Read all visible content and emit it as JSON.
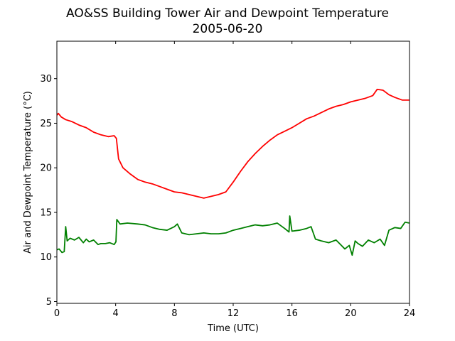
{
  "chart_data": {
    "type": "line",
    "title": "AO&SS Building Tower Air and Dewpoint Temperature",
    "subtitle": "2005-06-20",
    "xlabel": "Time (UTC)",
    "ylabel": "Air and Dewpoint Temperature (°C)",
    "xlim": [
      0,
      24
    ],
    "ylim": [
      4.8,
      34.2
    ],
    "xticks": [
      0,
      4,
      8,
      12,
      16,
      20,
      24
    ],
    "yticks": [
      5,
      10,
      15,
      20,
      25,
      30
    ],
    "grid": false,
    "legend": "none",
    "series": [
      {
        "color": "#ff0000",
        "x": [
          0,
          0.1,
          0.3,
          0.6,
          1.0,
          1.5,
          2.0,
          2.5,
          3.0,
          3.5,
          3.9,
          4.05,
          4.2,
          4.5,
          5.0,
          5.5,
          6.0,
          6.5,
          7.0,
          7.5,
          8.0,
          8.5,
          9.0,
          9.5,
          10.0,
          10.5,
          11.0,
          11.5,
          12.0,
          12.5,
          13.0,
          13.5,
          14.0,
          14.5,
          15.0,
          15.5,
          16.0,
          16.5,
          17.0,
          17.5,
          18.0,
          18.5,
          19.0,
          19.5,
          20.0,
          20.5,
          21.0,
          21.5,
          21.8,
          22.2,
          22.6,
          23.0,
          23.5,
          24.0
        ],
        "y": [
          25.9,
          26.1,
          25.7,
          25.4,
          25.2,
          24.8,
          24.5,
          24.0,
          23.7,
          23.5,
          23.6,
          23.3,
          21.0,
          20.0,
          19.3,
          18.7,
          18.4,
          18.2,
          17.9,
          17.6,
          17.3,
          17.2,
          17.0,
          16.8,
          16.6,
          16.8,
          17.0,
          17.3,
          18.4,
          19.6,
          20.7,
          21.6,
          22.4,
          23.1,
          23.7,
          24.1,
          24.5,
          25.0,
          25.5,
          25.8,
          26.2,
          26.6,
          26.9,
          27.1,
          27.4,
          27.6,
          27.8,
          28.1,
          28.8,
          28.7,
          28.2,
          27.9,
          27.6,
          27.6
        ]
      },
      {
        "color": "#008000",
        "x": [
          0,
          0.15,
          0.35,
          0.5,
          0.6,
          0.7,
          0.9,
          1.2,
          1.5,
          1.8,
          2.0,
          2.2,
          2.5,
          2.8,
          3.0,
          3.3,
          3.6,
          3.9,
          4.02,
          4.08,
          4.3,
          4.8,
          5.5,
          6.0,
          6.5,
          7.0,
          7.5,
          8.0,
          8.2,
          8.5,
          9.0,
          9.5,
          10.0,
          10.5,
          11.0,
          11.5,
          12.0,
          12.5,
          13.0,
          13.5,
          14.0,
          14.5,
          15.0,
          15.5,
          15.8,
          15.85,
          16.0,
          16.5,
          17.0,
          17.3,
          17.6,
          18.0,
          18.5,
          19.0,
          19.3,
          19.6,
          19.9,
          20.1,
          20.3,
          20.5,
          20.8,
          21.2,
          21.6,
          22.0,
          22.3,
          22.6,
          23.0,
          23.4,
          23.7,
          24.0
        ],
        "y": [
          10.8,
          10.9,
          10.5,
          10.6,
          13.4,
          11.8,
          12.1,
          11.9,
          12.2,
          11.6,
          12.0,
          11.7,
          11.9,
          11.4,
          11.5,
          11.5,
          11.6,
          11.4,
          11.7,
          14.2,
          13.7,
          13.8,
          13.7,
          13.6,
          13.3,
          13.1,
          13.0,
          13.4,
          13.7,
          12.7,
          12.5,
          12.6,
          12.7,
          12.6,
          12.6,
          12.7,
          13.0,
          13.2,
          13.4,
          13.6,
          13.5,
          13.6,
          13.8,
          13.2,
          12.8,
          14.6,
          12.9,
          13.0,
          13.2,
          13.4,
          12.0,
          11.8,
          11.6,
          11.9,
          11.4,
          10.9,
          11.3,
          10.2,
          11.8,
          11.5,
          11.2,
          11.9,
          11.6,
          12.0,
          11.3,
          13.0,
          13.3,
          13.2,
          13.9,
          13.8
        ]
      }
    ]
  }
}
